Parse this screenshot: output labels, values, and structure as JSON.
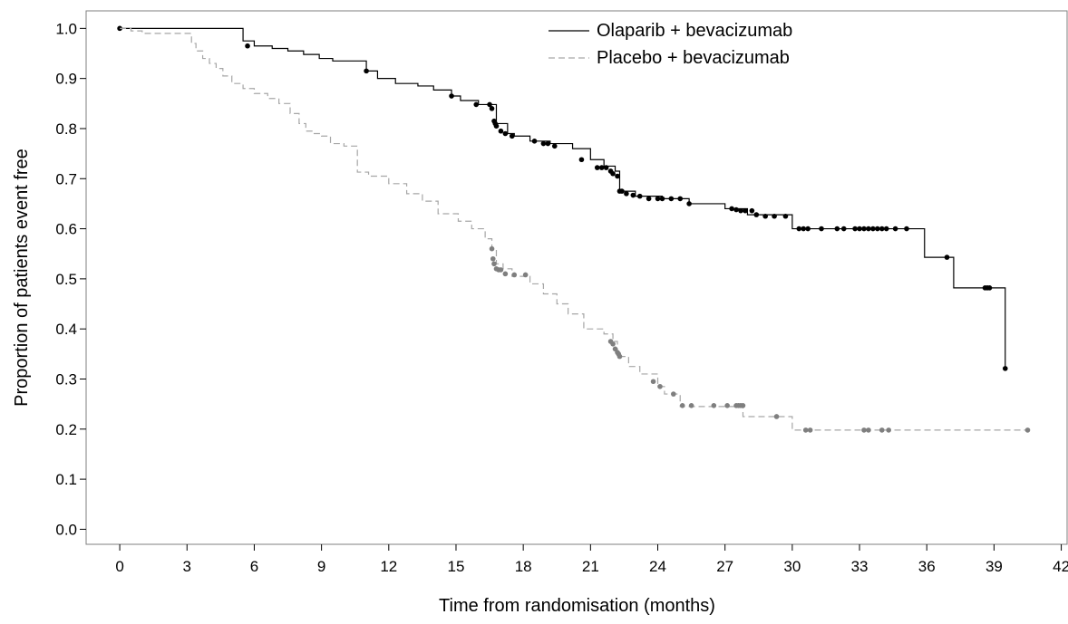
{
  "chart_data": {
    "type": "line",
    "title": "",
    "xlabel": "Time from randomisation (months)",
    "ylabel": "Proportion of patients event free",
    "xlim": [
      -1.5,
      42.3
    ],
    "ylim": [
      -0.03,
      1.035
    ],
    "x_ticks": [
      0,
      3,
      6,
      9,
      12,
      15,
      18,
      21,
      24,
      27,
      30,
      33,
      36,
      39,
      42
    ],
    "y_ticks": [
      0.0,
      0.1,
      0.2,
      0.3,
      0.4,
      0.5,
      0.6,
      0.7,
      0.8,
      0.9,
      1.0
    ],
    "y_tick_labels": [
      "0.0",
      "0.1",
      "0.2",
      "0.3",
      "0.4",
      "0.5",
      "0.6",
      "0.7",
      "0.8",
      "0.9",
      "1.0"
    ],
    "grid": false,
    "legend_position": "top-center",
    "series": [
      {
        "name": "Olaparib + bevacizumab",
        "color": "#000000",
        "dash": "solid",
        "censor_color": "#000000",
        "step_x": [
          0,
          5.5,
          6.0,
          6.8,
          7.5,
          8.2,
          8.9,
          9.5,
          11.0,
          11.5,
          12.3,
          13.3,
          14.0,
          14.8,
          15.2,
          16.0,
          16.8,
          17.3,
          17.6,
          18.3,
          19.2,
          20.2,
          21.0,
          21.6,
          22.1,
          22.3,
          23.0,
          24.2,
          25.4,
          27.0,
          28.0,
          30.0,
          35.9,
          37.2,
          39.5
        ],
        "step_y": [
          1.0,
          0.975,
          0.965,
          0.96,
          0.955,
          0.948,
          0.94,
          0.935,
          0.915,
          0.9,
          0.89,
          0.885,
          0.877,
          0.865,
          0.856,
          0.848,
          0.81,
          0.79,
          0.785,
          0.775,
          0.77,
          0.76,
          0.738,
          0.725,
          0.715,
          0.675,
          0.665,
          0.66,
          0.65,
          0.64,
          0.628,
          0.6,
          0.543,
          0.482,
          0.321
        ],
        "censor_x": [
          0,
          5.7,
          11.0,
          14.8,
          15.9,
          16.5,
          16.6,
          16.7,
          16.75,
          16.8,
          17.0,
          17.2,
          17.5,
          18.5,
          18.9,
          19.1,
          19.4,
          20.6,
          21.3,
          21.5,
          21.7,
          21.9,
          22.0,
          22.2,
          22.3,
          22.4,
          22.6,
          22.9,
          23.2,
          23.6,
          24.0,
          24.2,
          24.6,
          25.0,
          25.4,
          27.3,
          27.5,
          27.7,
          27.9,
          28.2,
          28.4,
          28.8,
          29.2,
          29.7,
          30.3,
          30.5,
          30.7,
          31.3,
          32.0,
          32.3,
          32.8,
          33.0,
          33.2,
          33.4,
          33.6,
          33.8,
          34.0,
          34.2,
          34.6,
          35.1,
          36.9,
          38.6,
          38.7,
          38.8,
          39.5
        ],
        "censor_y": [
          1.0,
          0.965,
          0.915,
          0.865,
          0.848,
          0.848,
          0.84,
          0.815,
          0.81,
          0.805,
          0.795,
          0.79,
          0.785,
          0.775,
          0.77,
          0.77,
          0.765,
          0.738,
          0.722,
          0.722,
          0.722,
          0.715,
          0.71,
          0.705,
          0.675,
          0.675,
          0.67,
          0.667,
          0.665,
          0.66,
          0.66,
          0.66,
          0.66,
          0.66,
          0.65,
          0.64,
          0.638,
          0.636,
          0.636,
          0.636,
          0.628,
          0.625,
          0.625,
          0.625,
          0.6,
          0.6,
          0.6,
          0.6,
          0.6,
          0.6,
          0.6,
          0.6,
          0.6,
          0.6,
          0.6,
          0.6,
          0.6,
          0.6,
          0.6,
          0.6,
          0.543,
          0.482,
          0.482,
          0.482,
          0.321
        ]
      },
      {
        "name": "Placebo + bevacizumab",
        "color": "#a6a6a6",
        "dash": "dashed",
        "censor_color": "#7f7f7f",
        "step_x": [
          0,
          0.5,
          1.0,
          3.2,
          3.4,
          3.7,
          4.0,
          4.3,
          4.6,
          5.0,
          5.5,
          6.0,
          6.6,
          7.1,
          7.6,
          8.0,
          8.3,
          8.6,
          9.0,
          9.4,
          10.0,
          10.6,
          11.1,
          12.0,
          12.8,
          13.5,
          14.2,
          15.1,
          15.7,
          16.3,
          16.6,
          16.8,
          17.1,
          17.5,
          18.3,
          18.9,
          19.5,
          20.0,
          20.7,
          21.6,
          22.0,
          22.2,
          22.7,
          23.2,
          24.0,
          24.3,
          25.0,
          27.8,
          30.0,
          40.5
        ],
        "step_y": [
          1.0,
          0.995,
          0.99,
          0.97,
          0.955,
          0.94,
          0.93,
          0.92,
          0.905,
          0.89,
          0.88,
          0.87,
          0.86,
          0.85,
          0.83,
          0.81,
          0.795,
          0.79,
          0.785,
          0.77,
          0.765,
          0.713,
          0.705,
          0.69,
          0.67,
          0.655,
          0.63,
          0.615,
          0.6,
          0.58,
          0.56,
          0.53,
          0.52,
          0.505,
          0.49,
          0.47,
          0.45,
          0.43,
          0.4,
          0.39,
          0.375,
          0.345,
          0.325,
          0.31,
          0.285,
          0.27,
          0.245,
          0.225,
          0.198,
          0.198
        ],
        "censor_x": [
          16.6,
          16.65,
          16.7,
          16.8,
          16.9,
          17.0,
          17.2,
          17.6,
          18.1,
          21.9,
          22.0,
          22.1,
          22.2,
          22.25,
          22.3,
          23.8,
          24.1,
          24.7,
          25.1,
          25.5,
          26.5,
          27.1,
          27.5,
          27.6,
          27.7,
          27.8,
          29.3,
          30.6,
          30.8,
          33.2,
          33.4,
          34.0,
          34.3,
          40.5
        ],
        "censor_y": [
          0.56,
          0.54,
          0.53,
          0.52,
          0.518,
          0.518,
          0.51,
          0.508,
          0.508,
          0.375,
          0.37,
          0.36,
          0.353,
          0.35,
          0.345,
          0.295,
          0.285,
          0.27,
          0.247,
          0.247,
          0.247,
          0.247,
          0.247,
          0.247,
          0.247,
          0.247,
          0.225,
          0.198,
          0.198,
          0.198,
          0.198,
          0.198,
          0.198,
          0.198
        ]
      }
    ]
  }
}
